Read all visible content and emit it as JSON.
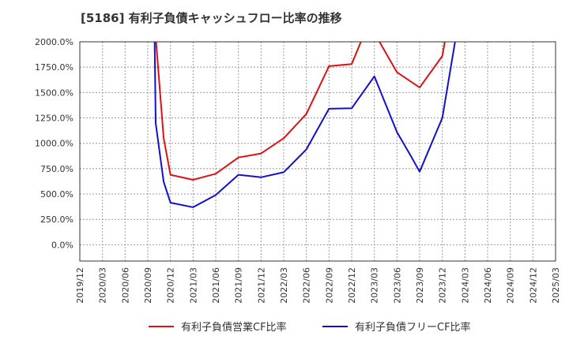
{
  "chart_data": {
    "type": "line",
    "title": "[5186]  有利子負債キャッシュフロー比率の推移",
    "x": [
      "2019/12",
      "2020/03",
      "2020/06",
      "2020/09",
      "2020/12",
      "2021/03",
      "2021/06",
      "2021/09",
      "2021/12",
      "2022/03",
      "2022/06",
      "2022/09",
      "2022/12",
      "2023/03",
      "2023/06",
      "2023/09",
      "2023/12",
      "2024/03",
      "2024/06",
      "2024/09",
      "2024/12",
      "2025/03"
    ],
    "yticks": [
      0,
      250,
      500,
      750,
      1000,
      1250,
      1500,
      1750,
      2000
    ],
    "ytick_labels": [
      "0.0%",
      "250.0%",
      "500.0%",
      "750.0%",
      "1000.0%",
      "1250.0%",
      "1500.0%",
      "1750.0%",
      "2000.0%"
    ],
    "ylim": [
      -160,
      2000
    ],
    "grid": true,
    "legend_placement": "bottom",
    "series": [
      {
        "name": "有利子負債営業CF比率",
        "color": "#dd1111",
        "points": [
          {
            "x": 3.35,
            "y": 2050
          },
          {
            "x": 3.7,
            "y": 1050
          },
          {
            "x": 4,
            "y": 690
          },
          {
            "x": 5,
            "y": 640
          },
          {
            "x": 6,
            "y": 700
          },
          {
            "x": 7,
            "y": 860
          },
          {
            "x": 8,
            "y": 900
          },
          {
            "x": 9,
            "y": 1050
          },
          {
            "x": 10,
            "y": 1290
          },
          {
            "x": 11,
            "y": 1760
          },
          {
            "x": 12,
            "y": 1780
          },
          {
            "x": 12.5,
            "y": 2050
          },
          {
            "x": 13.1,
            "y": 2050
          },
          {
            "x": 14,
            "y": 1700
          },
          {
            "x": 15,
            "y": 1550
          },
          {
            "x": 16,
            "y": 1860
          },
          {
            "x": 16.15,
            "y": 2050
          }
        ]
      },
      {
        "name": "有利子負債フリーCF比率",
        "color": "#1111cc",
        "points": [
          {
            "x": 3.3,
            "y": 2050
          },
          {
            "x": 3.35,
            "y": 1200
          },
          {
            "x": 3.7,
            "y": 620
          },
          {
            "x": 4,
            "y": 415
          },
          {
            "x": 5,
            "y": 370
          },
          {
            "x": 6,
            "y": 490
          },
          {
            "x": 7,
            "y": 690
          },
          {
            "x": 8,
            "y": 665
          },
          {
            "x": 9,
            "y": 715
          },
          {
            "x": 10,
            "y": 940
          },
          {
            "x": 11,
            "y": 1340
          },
          {
            "x": 12,
            "y": 1345
          },
          {
            "x": 13,
            "y": 1660
          },
          {
            "x": 14,
            "y": 1110
          },
          {
            "x": 14.6,
            "y": 880
          },
          {
            "x": 15,
            "y": 720
          },
          {
            "x": 16,
            "y": 1250
          },
          {
            "x": 16.6,
            "y": 2050
          }
        ]
      }
    ]
  }
}
